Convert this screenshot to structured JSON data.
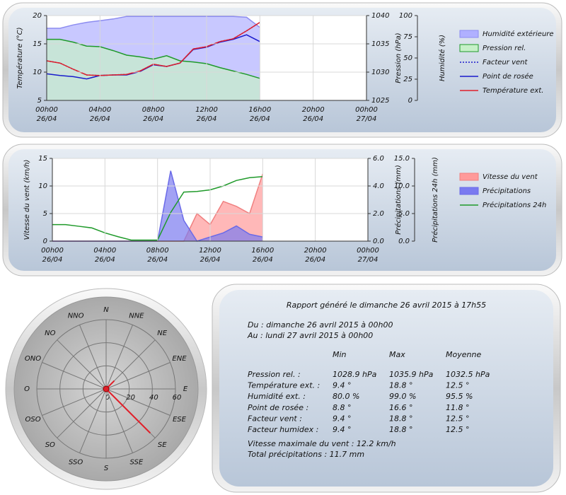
{
  "chart_data": [
    {
      "type": "line",
      "ylabel": "Température (°C)",
      "y2label": "Pression (hPa)",
      "y3label": "Humidité (%)",
      "x": [
        0,
        1,
        2,
        3,
        4,
        5,
        6,
        7,
        8,
        9,
        10,
        11,
        12,
        13,
        14,
        15,
        16
      ],
      "xlim": [
        0,
        24
      ],
      "xticks": [
        {
          "value": 0,
          "label": "00h00",
          "date": "26/04"
        },
        {
          "value": 4,
          "label": "04h00",
          "date": "26/04"
        },
        {
          "value": 8,
          "label": "08h00",
          "date": "26/04"
        },
        {
          "value": 12,
          "label": "12h00",
          "date": "26/04"
        },
        {
          "value": 16,
          "label": "16h00",
          "date": "26/04"
        },
        {
          "value": 20,
          "label": "20h00",
          "date": "26/04"
        },
        {
          "value": 24,
          "label": "00h00",
          "date": "27/04"
        }
      ],
      "ylim": [
        5,
        20
      ],
      "yticks": [
        5,
        10,
        15,
        20
      ],
      "y2lim": [
        1025,
        1040
      ],
      "y2ticks": [
        1025,
        1030,
        1035,
        1040
      ],
      "y3lim": [
        0,
        100
      ],
      "y3ticks": [
        0,
        25,
        50,
        75,
        100
      ],
      "grid": true,
      "series": [
        {
          "name": "Humidité extérieure",
          "axis": "y3",
          "kind": "area",
          "color": "#8c8cf0",
          "fill": "#b0b0ff",
          "values": [
            85,
            85,
            89,
            92,
            94,
            96,
            99,
            99,
            99,
            99,
            99,
            99,
            99,
            99,
            99,
            98,
            86
          ]
        },
        {
          "name": "Pression rel.",
          "axis": "y2",
          "kind": "area",
          "color": "#1f9a2a",
          "fill": "#c6f0c8",
          "values": [
            1035.8,
            1035.8,
            1035.3,
            1034.6,
            1034.5,
            1033.8,
            1033.0,
            1032.7,
            1032.3,
            1032.9,
            1032.0,
            1031.8,
            1031.5,
            1030.8,
            1030.2,
            1029.6,
            1028.9
          ]
        },
        {
          "name": "Facteur vent",
          "axis": "y",
          "kind": "dotted",
          "color": "#1a1acc",
          "values": [
            12.0,
            11.6,
            10.5,
            9.5,
            9.4,
            9.5,
            9.6,
            10.2,
            11.4,
            11.0,
            11.6,
            14.1,
            14.5,
            15.4,
            15.9,
            17.3,
            18.8
          ]
        },
        {
          "name": "Point de rosée",
          "axis": "y",
          "kind": "line",
          "color": "#1a1acc",
          "values": [
            9.7,
            9.4,
            9.2,
            8.8,
            9.4,
            9.5,
            9.5,
            10.1,
            11.3,
            11.0,
            11.6,
            14.0,
            14.4,
            15.3,
            15.8,
            16.6,
            15.4
          ]
        },
        {
          "name": "Température ext.",
          "axis": "y",
          "kind": "line",
          "color": "#e0202a",
          "values": [
            12.0,
            11.6,
            10.5,
            9.5,
            9.4,
            9.5,
            9.6,
            10.2,
            11.4,
            11.0,
            11.6,
            14.1,
            14.5,
            15.4,
            15.9,
            17.3,
            18.8
          ]
        }
      ]
    },
    {
      "type": "line",
      "ylabel": "Vitesse du vent (km/h)",
      "y2label": "Précipitations (mm)",
      "y3label": "Précipitations 24h (mm)",
      "x": [
        0,
        1,
        2,
        3,
        4,
        5,
        6,
        7,
        8,
        9,
        10,
        11,
        12,
        13,
        14,
        15,
        16
      ],
      "xlim": [
        0,
        24
      ],
      "xticks": [
        {
          "value": 0,
          "label": "00h00",
          "date": "26/04"
        },
        {
          "value": 4,
          "label": "04h00",
          "date": "26/04"
        },
        {
          "value": 8,
          "label": "08h00",
          "date": "26/04"
        },
        {
          "value": 12,
          "label": "12h00",
          "date": "26/04"
        },
        {
          "value": 16,
          "label": "16h00",
          "date": "26/04"
        },
        {
          "value": 20,
          "label": "20h00",
          "date": "26/04"
        },
        {
          "value": 24,
          "label": "00h00",
          "date": "27/04"
        }
      ],
      "ylim": [
        0,
        15
      ],
      "yticks": [
        0,
        5,
        10,
        15
      ],
      "y2lim": [
        0,
        6
      ],
      "y2ticks": [
        {
          "value": 0,
          "label": "0.0"
        },
        {
          "value": 2,
          "label": "2.0"
        },
        {
          "value": 4,
          "label": "4.0"
        },
        {
          "value": 6,
          "label": "6.0"
        }
      ],
      "y3lim": [
        0,
        15
      ],
      "y3ticks": [
        {
          "value": 0,
          "label": "0.0"
        },
        {
          "value": 5,
          "label": "5.0"
        },
        {
          "value": 10,
          "label": "10.0"
        },
        {
          "value": 15,
          "label": "15.0"
        }
      ],
      "grid": true,
      "series": [
        {
          "name": "Vitesse du vent",
          "axis": "y",
          "kind": "area",
          "color": "#f08080",
          "fill": "#ff9a9a",
          "values": [
            0,
            0,
            0,
            0,
            0,
            0,
            0,
            0,
            0,
            0,
            0,
            5.0,
            3.0,
            7.2,
            6.3,
            5.0,
            12.2
          ]
        },
        {
          "name": "Précipitations",
          "axis": "y2",
          "kind": "area",
          "color": "#6a6ae8",
          "fill": "#7a7af0",
          "values": [
            0,
            0,
            0,
            0,
            0,
            0,
            0,
            0,
            0,
            5.1,
            1.5,
            0,
            0.3,
            0.6,
            1.1,
            0.5,
            0.3
          ]
        },
        {
          "name": "Précipitations 24h",
          "axis": "y3",
          "kind": "line",
          "color": "#1f9a2a",
          "values": [
            3.0,
            3.0,
            2.7,
            2.4,
            1.5,
            0.8,
            0.2,
            0.2,
            0.2,
            5.2,
            8.9,
            9.0,
            9.3,
            10.0,
            11.0,
            11.5,
            11.7
          ]
        }
      ]
    },
    {
      "type": "polar",
      "categories": [
        "N",
        "NNE",
        "NE",
        "ENE",
        "E",
        "ESE",
        "SE",
        "SSE",
        "S",
        "SSO",
        "SO",
        "OSO",
        "O",
        "ONO",
        "NO",
        "NNO"
      ],
      "values": [
        0,
        0,
        10,
        0,
        0,
        0,
        54,
        0,
        0,
        0,
        0,
        0,
        0,
        0,
        0,
        0
      ],
      "color": "#e0202a",
      "rlim": [
        0,
        60
      ],
      "rticks": [
        0,
        20,
        40,
        60
      ]
    }
  ],
  "report": {
    "title": "Rapport généré le dimanche 26 avril 2015 à 17h55",
    "from": "Du : dimanche 26 avril 2015 à 00h00",
    "to": "Au : lundi 27 avril 2015 à 00h00",
    "columns": [
      "Min",
      "Max",
      "Moyenne"
    ],
    "rows": [
      [
        "Pression rel. :",
        "1028.9 hPa",
        "1035.9 hPa",
        "1032.5 hPa"
      ],
      [
        "Température ext. :",
        "9.4 °",
        "18.8 °",
        "12.5 °"
      ],
      [
        "Humidité ext. :",
        "80.0 %",
        "99.0 %",
        "95.5 %"
      ],
      [
        "Point de rosée :",
        "8.8 °",
        "16.6 °",
        "11.8 °"
      ],
      [
        "Facteur vent :",
        "9.4 °",
        "18.8 °",
        "12.5 °"
      ],
      [
        "Facteur humidex :",
        "9.4 °",
        "18.8 °",
        "12.5 °"
      ]
    ],
    "wind": "Vitesse maximale du vent : 12.2 km/h",
    "rain": "Total précipitations : 11.7 mm"
  }
}
